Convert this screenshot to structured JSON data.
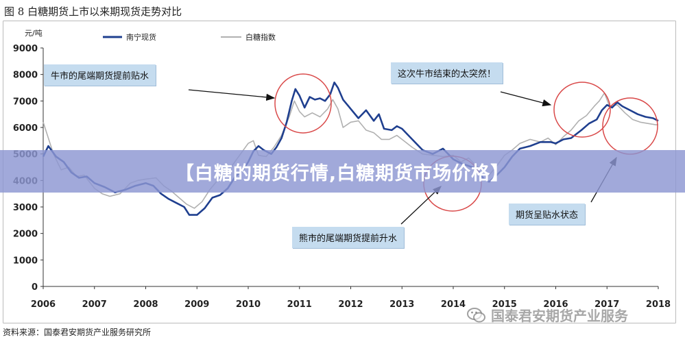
{
  "figure_title": "图 8  白糖期货上市以来期现货走势对比",
  "source_note": "资料来源：国泰君安期货产业服务研究所",
  "banner_text": "【白糖的期货行情,白糖期货市场价格】",
  "watermark_text": "国泰君安期货产业服务",
  "annotations": {
    "bull_premium": "牛市的尾端期货提前贴水",
    "bull_end": "这次牛市结束的太突然！",
    "bear_premium": "熊市的尾端期货提前升水",
    "futures_discount": "期货呈贴水状态"
  },
  "colors": {
    "spot": "#1f3f8f",
    "index": "#b0b0b0",
    "circle": "#d94848",
    "callout_bg": "#c5dcef",
    "banner": "#8c96d2"
  },
  "chart_data": {
    "type": "line",
    "ylabel": "元/吨",
    "ylim": [
      0,
      9000
    ],
    "yticks": [
      "0",
      "1000",
      "2000",
      "3000",
      "4000",
      "5000",
      "6000",
      "7000",
      "8000",
      "9000"
    ],
    "xlim": [
      2006.0,
      2018.0
    ],
    "xticks": [
      "2006",
      "2007",
      "2008",
      "2009",
      "2010",
      "2011",
      "2012",
      "2013",
      "2014",
      "2015",
      "2016",
      "2017",
      "2018"
    ],
    "legend_position": "top",
    "series": [
      {
        "name": "南宁现货",
        "color": "#1f3f8f",
        "points": [
          [
            2006.0,
            4900
          ],
          [
            2006.1,
            5300
          ],
          [
            2006.25,
            4900
          ],
          [
            2006.4,
            4700
          ],
          [
            2006.55,
            4300
          ],
          [
            2006.7,
            4100
          ],
          [
            2006.85,
            4150
          ],
          [
            2007.0,
            3900
          ],
          [
            2007.2,
            3750
          ],
          [
            2007.4,
            3550
          ],
          [
            2007.6,
            3650
          ],
          [
            2007.8,
            3800
          ],
          [
            2008.0,
            3900
          ],
          [
            2008.15,
            3800
          ],
          [
            2008.3,
            3500
          ],
          [
            2008.45,
            3300
          ],
          [
            2008.6,
            3150
          ],
          [
            2008.75,
            3000
          ],
          [
            2008.85,
            2700
          ],
          [
            2009.0,
            2700
          ],
          [
            2009.15,
            2950
          ],
          [
            2009.3,
            3350
          ],
          [
            2009.45,
            3450
          ],
          [
            2009.6,
            3700
          ],
          [
            2009.75,
            4150
          ],
          [
            2009.9,
            4400
          ],
          [
            2010.0,
            4700
          ],
          [
            2010.1,
            5100
          ],
          [
            2010.2,
            5300
          ],
          [
            2010.3,
            5150
          ],
          [
            2010.45,
            5000
          ],
          [
            2010.55,
            5250
          ],
          [
            2010.65,
            5600
          ],
          [
            2010.75,
            6200
          ],
          [
            2010.85,
            7000
          ],
          [
            2010.92,
            7450
          ],
          [
            2011.0,
            7200
          ],
          [
            2011.1,
            6750
          ],
          [
            2011.2,
            7150
          ],
          [
            2011.3,
            7050
          ],
          [
            2011.4,
            7100
          ],
          [
            2011.5,
            7000
          ],
          [
            2011.6,
            7250
          ],
          [
            2011.68,
            7700
          ],
          [
            2011.75,
            7500
          ],
          [
            2011.85,
            7050
          ],
          [
            2012.0,
            6700
          ],
          [
            2012.15,
            6350
          ],
          [
            2012.3,
            6650
          ],
          [
            2012.45,
            6250
          ],
          [
            2012.55,
            6500
          ],
          [
            2012.65,
            5950
          ],
          [
            2012.8,
            5900
          ],
          [
            2012.9,
            6050
          ],
          [
            2013.0,
            5950
          ],
          [
            2013.2,
            5550
          ],
          [
            2013.4,
            5150
          ],
          [
            2013.6,
            5000
          ],
          [
            2013.8,
            5200
          ],
          [
            2014.0,
            4800
          ],
          [
            2014.15,
            4650
          ],
          [
            2014.3,
            4550
          ],
          [
            2014.45,
            4450
          ],
          [
            2014.6,
            4050
          ],
          [
            2014.7,
            3950
          ],
          [
            2014.85,
            4200
          ],
          [
            2015.0,
            4500
          ],
          [
            2015.15,
            4900
          ],
          [
            2015.3,
            5200
          ],
          [
            2015.5,
            5300
          ],
          [
            2015.7,
            5450
          ],
          [
            2015.9,
            5450
          ],
          [
            2016.0,
            5400
          ],
          [
            2016.15,
            5550
          ],
          [
            2016.3,
            5600
          ],
          [
            2016.5,
            5900
          ],
          [
            2016.65,
            6150
          ],
          [
            2016.8,
            6300
          ],
          [
            2016.9,
            6650
          ],
          [
            2017.0,
            6850
          ],
          [
            2017.1,
            6750
          ],
          [
            2017.2,
            6950
          ],
          [
            2017.3,
            6800
          ],
          [
            2017.45,
            6650
          ],
          [
            2017.6,
            6500
          ],
          [
            2017.75,
            6400
          ],
          [
            2017.9,
            6350
          ],
          [
            2018.0,
            6250
          ]
        ]
      },
      {
        "name": "白糖指数",
        "color": "#b0b0b0",
        "points": [
          [
            2006.0,
            6200
          ],
          [
            2006.1,
            5600
          ],
          [
            2006.2,
            5000
          ],
          [
            2006.35,
            4400
          ],
          [
            2006.5,
            4500
          ],
          [
            2006.65,
            4150
          ],
          [
            2006.8,
            4200
          ],
          [
            2007.0,
            3700
          ],
          [
            2007.15,
            3500
          ],
          [
            2007.3,
            3400
          ],
          [
            2007.5,
            3500
          ],
          [
            2007.7,
            3900
          ],
          [
            2007.85,
            4000
          ],
          [
            2008.0,
            4050
          ],
          [
            2008.2,
            4100
          ],
          [
            2008.35,
            3800
          ],
          [
            2008.5,
            3600
          ],
          [
            2008.65,
            3350
          ],
          [
            2008.8,
            3100
          ],
          [
            2008.95,
            2950
          ],
          [
            2009.1,
            3200
          ],
          [
            2009.25,
            3650
          ],
          [
            2009.4,
            4000
          ],
          [
            2009.55,
            4300
          ],
          [
            2009.7,
            4600
          ],
          [
            2009.85,
            5000
          ],
          [
            2010.0,
            5400
          ],
          [
            2010.1,
            5500
          ],
          [
            2010.2,
            4950
          ],
          [
            2010.35,
            4900
          ],
          [
            2010.5,
            5250
          ],
          [
            2010.65,
            5700
          ],
          [
            2010.8,
            6400
          ],
          [
            2010.9,
            7000
          ],
          [
            2011.0,
            6600
          ],
          [
            2011.1,
            6400
          ],
          [
            2011.25,
            6550
          ],
          [
            2011.4,
            6400
          ],
          [
            2011.55,
            6700
          ],
          [
            2011.65,
            7050
          ],
          [
            2011.75,
            6700
          ],
          [
            2011.85,
            6000
          ],
          [
            2012.0,
            6200
          ],
          [
            2012.15,
            6250
          ],
          [
            2012.3,
            5900
          ],
          [
            2012.45,
            5800
          ],
          [
            2012.6,
            5550
          ],
          [
            2012.75,
            5550
          ],
          [
            2012.9,
            5700
          ],
          [
            2013.0,
            5550
          ],
          [
            2013.2,
            5250
          ],
          [
            2013.4,
            5000
          ],
          [
            2013.6,
            4950
          ],
          [
            2013.8,
            4900
          ],
          [
            2014.0,
            4950
          ],
          [
            2014.15,
            4700
          ],
          [
            2014.3,
            4850
          ],
          [
            2014.45,
            4550
          ],
          [
            2014.6,
            4350
          ],
          [
            2014.7,
            4200
          ],
          [
            2014.85,
            4550
          ],
          [
            2015.0,
            4950
          ],
          [
            2015.15,
            5150
          ],
          [
            2015.3,
            5400
          ],
          [
            2015.5,
            5550
          ],
          [
            2015.7,
            5450
          ],
          [
            2015.85,
            5600
          ],
          [
            2016.0,
            5350
          ],
          [
            2016.15,
            5650
          ],
          [
            2016.3,
            5900
          ],
          [
            2016.45,
            6250
          ],
          [
            2016.6,
            6450
          ],
          [
            2016.75,
            6800
          ],
          [
            2016.85,
            7000
          ],
          [
            2016.95,
            7300
          ],
          [
            2017.05,
            6800
          ],
          [
            2017.2,
            6850
          ],
          [
            2017.35,
            6550
          ],
          [
            2017.5,
            6300
          ],
          [
            2017.65,
            6200
          ],
          [
            2017.8,
            6150
          ],
          [
            2017.95,
            6100
          ],
          [
            2018.0,
            6100
          ]
        ]
      }
    ]
  }
}
